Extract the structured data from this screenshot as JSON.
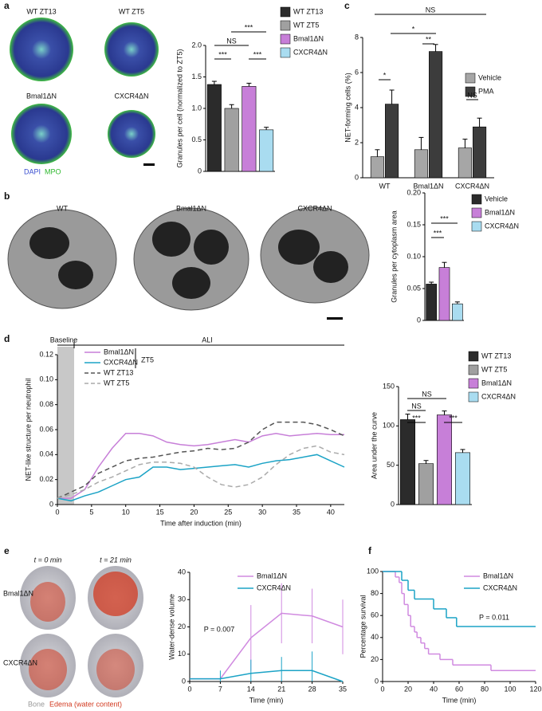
{
  "panel_labels": [
    "a",
    "b",
    "c",
    "d",
    "e",
    "f"
  ],
  "images": {
    "a": {
      "labels": [
        "WT ZT13",
        "WT ZT5",
        "Bmal1ΔN",
        "CXCR4ΔN"
      ],
      "stains": [
        "DAPI",
        "MPO"
      ]
    },
    "b": {
      "labels": [
        "WT",
        "Bmal1ΔN",
        "CXCR4ΔN"
      ]
    },
    "e": {
      "columns": [
        "t = 0 min",
        "t = 21 min"
      ],
      "rows": [
        "Bmal1ΔN",
        "CXCR4ΔN"
      ],
      "legend": [
        "Bone",
        "Edema (water content)"
      ]
    }
  },
  "chart_data": [
    {
      "type": "bar",
      "ylabel": "Granules per cell (normalized to ZT5)",
      "series": [
        {
          "name": "WT ZT13",
          "color": "#2b2b2b",
          "values": [
            1.38
          ],
          "errors": [
            0.05
          ]
        },
        {
          "name": "WT ZT5",
          "color": "#a0a0a0",
          "values": [
            1.0
          ],
          "errors": [
            0.06
          ]
        },
        {
          "name": "Bmal1ΔN",
          "color": "#c77fd8",
          "values": [
            1.35
          ],
          "errors": [
            0.05
          ]
        },
        {
          "name": "CXCR4ΔN",
          "color": "#a9dcf0",
          "values": [
            0.66
          ],
          "errors": [
            0.04
          ]
        }
      ],
      "ylim": [
        0,
        2.0
      ],
      "yticks": [
        0,
        0.5,
        {
          "value": 1,
          "label": "1.0"
        },
        1.5,
        {
          "value": 2,
          "label": "2.0"
        }
      ],
      "annotations": [
        "***",
        "NS",
        "***",
        "***"
      ]
    },
    {
      "type": "bar",
      "ylabel": "Granules per cytoplasm area",
      "series": [
        {
          "name": "Vehicle",
          "color": "#2b2b2b",
          "values": [
            0.057
          ],
          "errors": [
            0.003
          ]
        },
        {
          "name": "Bmal1ΔN",
          "color": "#c77fd8",
          "values": [
            0.083
          ],
          "errors": [
            0.008
          ]
        },
        {
          "name": "CXCR4ΔN",
          "color": "#a9dcf0",
          "values": [
            0.026
          ],
          "errors": [
            0.003
          ]
        }
      ],
      "ylim": [
        0,
        0.2
      ],
      "yticks": [
        0,
        0.05,
        {
          "value": 0.1,
          "label": "0.10"
        },
        0.15,
        {
          "value": 0.2,
          "label": "0.20"
        }
      ],
      "annotations": [
        "***",
        "***"
      ]
    },
    {
      "type": "grouped_bar",
      "ylabel": "NET-forming cells (%)",
      "categories": [
        "WT",
        "Bmal1ΔN",
        "CXCR4ΔN"
      ],
      "series": [
        {
          "name": "Vehicle",
          "color": "#a6a6a6",
          "values": [
            1.2,
            1.6,
            1.7
          ],
          "errors": [
            0.4,
            0.7,
            0.5
          ]
        },
        {
          "name": "PMA",
          "color": "#3c3c3c",
          "values": [
            4.2,
            7.2,
            2.9
          ],
          "errors": [
            0.8,
            0.4,
            0.5
          ]
        }
      ],
      "ylim": [
        0,
        8
      ],
      "yticks": [
        0,
        2,
        4,
        6,
        8
      ],
      "annotations": [
        "NS",
        "*",
        "**",
        "*",
        "NS"
      ]
    },
    {
      "type": "line",
      "xlabel": "Time after induction (min)",
      "ylabel": "NET-like structure per neutrophil",
      "x": [
        0,
        2,
        4,
        6,
        8,
        10,
        12,
        14,
        16,
        18,
        20,
        22,
        24,
        26,
        28,
        30,
        32,
        34,
        36,
        38,
        40,
        42
      ],
      "xlim": [
        0,
        42
      ],
      "xticks": [
        0,
        5,
        10,
        15,
        20,
        25,
        30,
        35,
        40
      ],
      "ylim": [
        0,
        0.12
      ],
      "yticks": [
        0,
        0.02,
        0.04,
        0.06,
        0.08,
        {
          "value": 0.1,
          "label": "0.10"
        },
        0.12
      ],
      "series": [
        {
          "name": "Bmal1ΔN",
          "color": "#c77fd8",
          "dashed": false,
          "values": [
            0.005,
            0.005,
            0.012,
            0.03,
            0.045,
            0.057,
            0.057,
            0.055,
            0.05,
            0.048,
            0.047,
            0.048,
            0.05,
            0.052,
            0.05,
            0.055,
            0.057,
            0.055,
            0.056,
            0.057,
            0.056,
            0.056
          ]
        },
        {
          "name": "CXCR4ΔN",
          "color": "#1ba3c6",
          "dashed": false,
          "values": [
            0.005,
            0.003,
            0.007,
            0.01,
            0.015,
            0.02,
            0.022,
            0.03,
            0.03,
            0.028,
            0.029,
            0.03,
            0.031,
            0.032,
            0.03,
            0.033,
            0.035,
            0.036,
            0.038,
            0.04,
            0.035,
            0.03
          ]
        },
        {
          "name": "WT ZT13",
          "color": "#555555",
          "dashed": true,
          "values": [
            0.005,
            0.01,
            0.015,
            0.025,
            0.03,
            0.035,
            0.037,
            0.038,
            0.04,
            0.042,
            0.043,
            0.045,
            0.044,
            0.045,
            0.05,
            0.06,
            0.066,
            0.066,
            0.066,
            0.064,
            0.06,
            0.055
          ]
        },
        {
          "name": "WT ZT5",
          "color": "#aaaaaa",
          "dashed": true,
          "values": [
            0.005,
            0.008,
            0.012,
            0.018,
            0.022,
            0.027,
            0.032,
            0.034,
            0.034,
            0.033,
            0.03,
            0.022,
            0.016,
            0.014,
            0.016,
            0.022,
            0.032,
            0.04,
            0.045,
            0.047,
            0.042,
            0.04
          ]
        }
      ],
      "annotations": [
        "Baseline",
        "ALI",
        "ZT5"
      ]
    },
    {
      "type": "bar",
      "ylabel": "Area under the curve",
      "series": [
        {
          "name": "WT ZT13",
          "color": "#2b2b2b",
          "values": [
            108
          ],
          "errors": [
            7
          ]
        },
        {
          "name": "WT ZT5",
          "color": "#a0a0a0",
          "values": [
            52
          ],
          "errors": [
            4
          ]
        },
        {
          "name": "Bmal1ΔN",
          "color": "#c77fd8",
          "values": [
            114
          ],
          "errors": [
            5
          ]
        },
        {
          "name": "CXCR4ΔN",
          "color": "#a9dcf0",
          "values": [
            66
          ],
          "errors": [
            4
          ]
        }
      ],
      "ylim": [
        0,
        150
      ],
      "yticks": [
        0,
        50,
        100,
        150
      ],
      "annotations": [
        "NS",
        "NS",
        "***",
        "***"
      ]
    },
    {
      "type": "error_line",
      "xlabel": "Time (min)",
      "ylabel": "Water-dense volume",
      "x": [
        0,
        7,
        14,
        21,
        28,
        35
      ],
      "xlim": [
        0,
        35
      ],
      "xticks": [
        0,
        7,
        14,
        21,
        28,
        35
      ],
      "ylim": [
        0,
        40
      ],
      "yticks": [
        0,
        10,
        20,
        30,
        40
      ],
      "series": [
        {
          "name": "Bmal1ΔN",
          "color": "#d08ae0",
          "values": [
            1,
            1,
            16,
            25,
            24,
            20
          ],
          "errors": [
            0,
            0,
            12,
            11,
            10,
            10
          ]
        },
        {
          "name": "CXCR4ΔN",
          "color": "#1ba3c6",
          "values": [
            1,
            1,
            3,
            4,
            4,
            0
          ],
          "errors": [
            0,
            3,
            5,
            5,
            7,
            0
          ]
        }
      ],
      "annotations": [
        "P = 0.007"
      ]
    },
    {
      "type": "step",
      "xlabel": "Time (min)",
      "ylabel": "Percentage survival",
      "xlim": [
        0,
        120
      ],
      "xticks": [
        0,
        20,
        40,
        60,
        80,
        100,
        120
      ],
      "ylim": [
        0,
        100
      ],
      "yticks": [
        0,
        20,
        40,
        60,
        80,
        100
      ],
      "series": [
        {
          "name": "Bmal1ΔN",
          "color": "#d08ae0",
          "x": [
            0,
            10,
            13,
            15,
            17,
            20,
            22,
            25,
            27,
            30,
            33,
            36,
            45,
            55,
            85,
            120
          ],
          "values": [
            100,
            95,
            90,
            80,
            70,
            60,
            50,
            45,
            40,
            35,
            30,
            25,
            20,
            15,
            10,
            10
          ]
        },
        {
          "name": "CXCR4ΔN",
          "color": "#1ba3c6",
          "x": [
            0,
            15,
            20,
            25,
            40,
            50,
            58,
            120
          ],
          "values": [
            100,
            92,
            83,
            75,
            66,
            58,
            50,
            50
          ]
        }
      ],
      "annotations": [
        "P = 0.011"
      ]
    }
  ]
}
